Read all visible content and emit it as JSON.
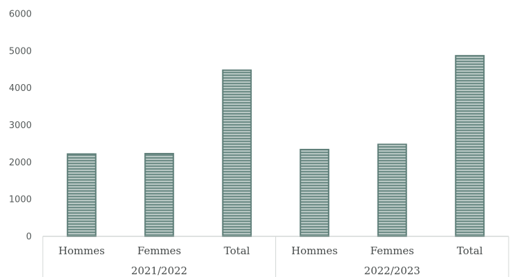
{
  "chart_data": {
    "type": "bar",
    "title": "",
    "xlabel": "",
    "ylabel": "",
    "ylim": [
      0,
      6000
    ],
    "yticks": [
      0,
      1000,
      2000,
      3000,
      4000,
      5000,
      6000
    ],
    "grid": false,
    "legend": "none",
    "bar_color": "#6f8e88",
    "groups": [
      {
        "label": "2021/2022",
        "categories": [
          "Hommes",
          "Femmes",
          "Total"
        ],
        "values": [
          2220,
          2230,
          4480
        ]
      },
      {
        "label": "2022/2023",
        "categories": [
          "Hommes",
          "Femmes",
          "Total"
        ],
        "values": [
          2340,
          2480,
          4870
        ]
      }
    ]
  }
}
